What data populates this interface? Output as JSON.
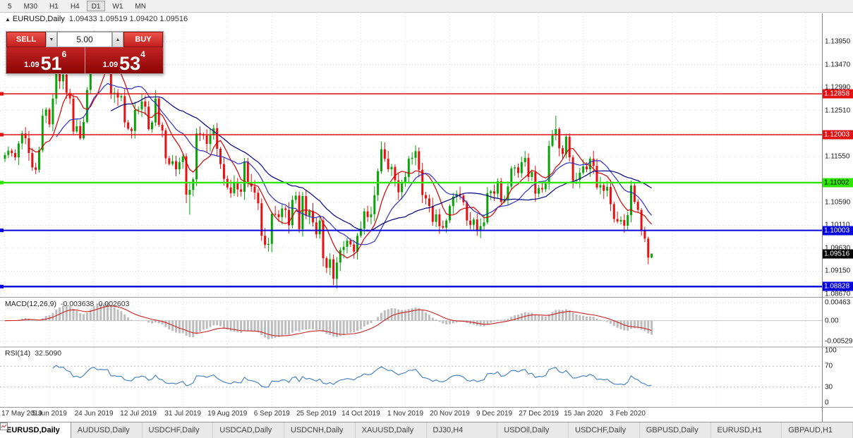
{
  "toolbar": {
    "periods": [
      "5",
      "M30",
      "H1",
      "H4",
      "D1",
      "W1",
      "MN"
    ],
    "active": "D1"
  },
  "main_chart": {
    "collapse_glyph": "▲",
    "symbol": "EURUSD,Daily",
    "ohlc": "1.09433 1.09519 1.09420 1.09516"
  },
  "trade_panel": {
    "sell_label": "SELL",
    "buy_label": "BUY",
    "volume": "5.00",
    "spin_down_glyph": "▼",
    "spin_up_glyph": "▲",
    "sell_price": {
      "prefix": "1.09",
      "big": "51",
      "sup": "6"
    },
    "buy_price": {
      "prefix": "1.09",
      "big": "53",
      "sup": "4"
    }
  },
  "price_axis": {
    "ticks": [
      "1.13950",
      "1.13470",
      "1.12990",
      "1.12510",
      "1.11550",
      "1.10590",
      "1.10110",
      "1.09630",
      "1.09150",
      "1.08670"
    ],
    "badges": [
      {
        "label": "1.12858",
        "bg": "#e01212",
        "fg": "#ffffff"
      },
      {
        "label": "1.12003",
        "bg": "#e01212",
        "fg": "#ffffff"
      },
      {
        "label": "1.11002",
        "bg": "#2ee600",
        "fg": "#000000"
      },
      {
        "label": "1.10003",
        "bg": "#0000dd",
        "fg": "#ffffff"
      },
      {
        "label": "1.09516",
        "bg": "#000000",
        "fg": "#ffffff"
      },
      {
        "label": "1.08828",
        "bg": "#0000dd",
        "fg": "#ffffff"
      }
    ]
  },
  "hlines": [
    {
      "price": 1.12858,
      "color": "#e01212",
      "width": 1.4
    },
    {
      "price": 1.12003,
      "color": "#e01212",
      "width": 1.4
    },
    {
      "price": 1.11002,
      "color": "#2ee600",
      "width": 2.4
    },
    {
      "price": 1.10003,
      "color": "#0000dd",
      "width": 2.0
    },
    {
      "price": 1.08828,
      "color": "#0000dd",
      "width": 2.4
    }
  ],
  "candles": {
    "up_color": "#0aa30a",
    "down_color": "#e81010",
    "first_open": 1.115,
    "closes": [
      1.1158,
      1.1167,
      1.1162,
      1.1153,
      1.1182,
      1.1203,
      1.1193,
      1.1162,
      1.1132,
      1.1127,
      1.1168,
      1.124,
      1.1253,
      1.1222,
      1.1276,
      1.1334,
      1.1312,
      1.1326,
      1.1288,
      1.1276,
      1.1207,
      1.1218,
      1.1193,
      1.1227,
      1.1294,
      1.1369,
      1.1399,
      1.1365,
      1.1372,
      1.1368,
      1.1373,
      1.1285,
      1.1288,
      1.1278,
      1.1281,
      1.1226,
      1.1213,
      1.1208,
      1.1252,
      1.1253,
      1.127,
      1.1259,
      1.1212,
      1.1226,
      1.1276,
      1.1221,
      1.1209,
      1.1151,
      1.1139,
      1.1145,
      1.1128,
      1.1143,
      1.1155,
      1.1075,
      1.1085,
      1.1107,
      1.1203,
      1.12,
      1.1199,
      1.1181,
      1.1199,
      1.1214,
      1.1171,
      1.1139,
      1.1108,
      1.109,
      1.1078,
      1.1099,
      1.1086,
      1.1081,
      1.1144,
      1.1101,
      1.1092,
      1.1079,
      1.1057,
      1.0989,
      1.097,
      1.0972,
      1.1035,
      1.1034,
      1.1028,
      1.1046,
      1.1043,
      1.1011,
      1.1064,
      1.1073,
      1.1003,
      1.1072,
      1.1031,
      1.1041,
      1.1017,
      1.0992,
      1.1021,
      1.0942,
      1.0922,
      1.094,
      1.0899,
      1.0933,
      1.0959,
      1.0966,
      1.0979,
      1.0971,
      1.0956,
      1.0989,
      1.1004,
      1.104,
      1.1028,
      1.1034,
      1.1074,
      1.1124,
      1.117,
      1.115,
      1.1128,
      1.1133,
      1.1105,
      1.108,
      1.11,
      1.1112,
      1.115,
      1.1152,
      1.1166,
      1.1127,
      1.1074,
      1.1067,
      1.1051,
      1.1018,
      1.1034,
      1.1009,
      1.1006,
      1.1021,
      1.1051,
      1.1071,
      1.1077,
      1.1073,
      1.1059,
      1.1021,
      1.1012,
      1.1023,
      1.1,
      1.1009,
      1.1017,
      1.1078,
      1.1082,
      1.1077,
      1.1103,
      1.106,
      1.1065,
      1.1092,
      1.113,
      1.1132,
      1.112,
      1.1143,
      1.1152,
      1.1112,
      1.1122,
      1.1077,
      1.1089,
      1.1086,
      1.1098,
      1.1177,
      1.1199,
      1.1212,
      1.1172,
      1.116,
      1.1196,
      1.1153,
      1.1104,
      1.1106,
      1.1121,
      1.1134,
      1.1128,
      1.115,
      1.1135,
      1.109,
      1.1095,
      1.1083,
      1.1091,
      1.1055,
      1.1024,
      1.1019,
      1.1022,
      1.101,
      1.1032,
      1.1094,
      1.106,
      1.1043,
      1.0999,
      1.0983,
      1.09433,
      1.09516
    ],
    "high_overrides": {
      "26": 1.1405,
      "161": 1.124,
      "189": 1.09519
    },
    "low_overrides": {
      "54": 1.1033,
      "97": 1.0879,
      "189": 1.0942
    }
  },
  "moving_averages": [
    {
      "period": 8,
      "color": "#d40000"
    },
    {
      "period": 16,
      "color": "#3030c0"
    },
    {
      "period": 32,
      "color": "#000080"
    }
  ],
  "macd": {
    "label": "MACD(12,26,9)",
    "values": "-0.003638 -0.002603",
    "fast": 12,
    "slow": 26,
    "signal": 9,
    "max": 0.00463,
    "min": -0.00529,
    "axis_labels": [
      "0.00463",
      "0.00",
      "-0.00529"
    ],
    "hist_color": "#bdbdbd",
    "signal_color": "#cc2222"
  },
  "rsi": {
    "label": "RSI(14)",
    "value": "32.5090",
    "period": 14,
    "color": "#3b7bbf",
    "levels": [
      70,
      30
    ],
    "axis_labels": [
      "100",
      "70",
      "30",
      "0"
    ]
  },
  "date_axis": {
    "labels": [
      "17 May 2019",
      "5 Jun 2019",
      "24 Jun 2019",
      "12 Jul 2019",
      "31 Jul 2019",
      "19 Aug 2019",
      "6 Sep 2019",
      "25 Sep 2019",
      "14 Oct 2019",
      "1 Nov 2019",
      "20 Nov 2019",
      "9 Dec 2019",
      "27 Dec 2019",
      "15 Jan 2020",
      "3 Feb 2020"
    ]
  },
  "tabs": [
    {
      "label": "EURUSD,Daily",
      "active": true
    },
    {
      "label": "AUDUSD,Daily",
      "active": false
    },
    {
      "label": "USDCHF,Daily",
      "active": false
    },
    {
      "label": "USDCAD,Daily",
      "active": false
    },
    {
      "label": "USDCNH,Daily",
      "active": false
    },
    {
      "label": "XAUUSD,Daily",
      "active": false
    },
    {
      "label": "DJ30,H4",
      "active": false
    },
    {
      "label": "USDOil,Daily",
      "active": false
    },
    {
      "label": "USDCHF,Daily",
      "active": false
    },
    {
      "label": "GBPUSD,Daily",
      "active": false
    },
    {
      "label": "EURUSD,H1",
      "active": false
    },
    {
      "label": "GBPAUD,H1",
      "active": false
    }
  ]
}
